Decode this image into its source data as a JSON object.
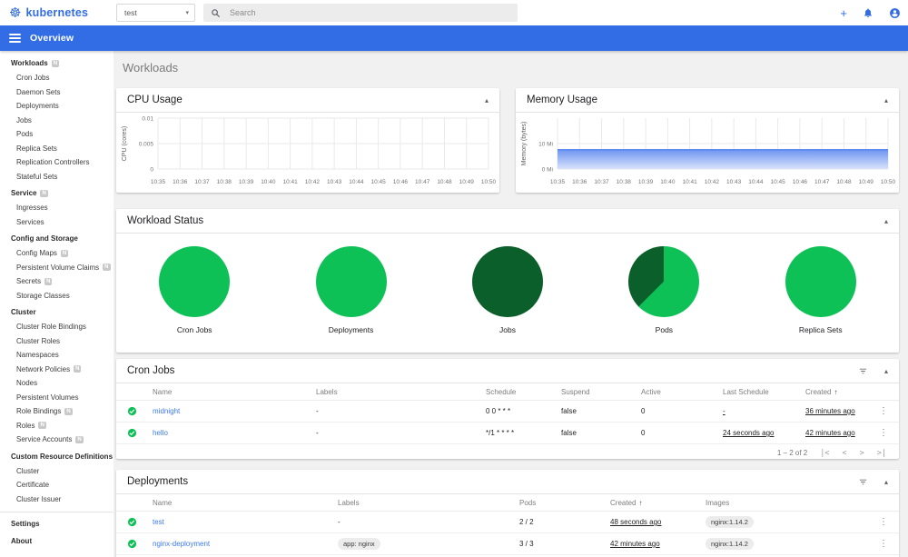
{
  "colors": {
    "brand_blue": "#326de6",
    "link_blue": "#3e7bf0",
    "success_green": "#0dc156",
    "succeeded_dark_green": "#0b5f2a",
    "memory_fill_top": "#6e95f1",
    "memory_fill_bottom": "#d9e2fb",
    "grid_line": "#e9e9e9",
    "page_bg": "#f1f1f1"
  },
  "topbar": {
    "logo_text": "kubernetes",
    "namespace_value": "test",
    "search_placeholder": "Search"
  },
  "navbar": {
    "title": "Overview"
  },
  "page": {
    "title": "Workloads"
  },
  "sidebar": {
    "sections": [
      {
        "label": "Workloads",
        "badge": true,
        "items": [
          {
            "label": "Cron Jobs",
            "badge": false
          },
          {
            "label": "Daemon Sets",
            "badge": false
          },
          {
            "label": "Deployments",
            "badge": false
          },
          {
            "label": "Jobs",
            "badge": false
          },
          {
            "label": "Pods",
            "badge": false
          },
          {
            "label": "Replica Sets",
            "badge": false
          },
          {
            "label": "Replication Controllers",
            "badge": false
          },
          {
            "label": "Stateful Sets",
            "badge": false
          }
        ]
      },
      {
        "label": "Service",
        "badge": true,
        "items": [
          {
            "label": "Ingresses",
            "badge": false
          },
          {
            "label": "Services",
            "badge": false
          }
        ]
      },
      {
        "label": "Config and Storage",
        "badge": false,
        "items": [
          {
            "label": "Config Maps",
            "badge": true
          },
          {
            "label": "Persistent Volume Claims",
            "badge": true
          },
          {
            "label": "Secrets",
            "badge": true
          },
          {
            "label": "Storage Classes",
            "badge": false
          }
        ]
      },
      {
        "label": "Cluster",
        "badge": false,
        "items": [
          {
            "label": "Cluster Role Bindings",
            "badge": false
          },
          {
            "label": "Cluster Roles",
            "badge": false
          },
          {
            "label": "Namespaces",
            "badge": false
          },
          {
            "label": "Network Policies",
            "badge": true
          },
          {
            "label": "Nodes",
            "badge": false
          },
          {
            "label": "Persistent Volumes",
            "badge": false
          },
          {
            "label": "Role Bindings",
            "badge": true
          },
          {
            "label": "Roles",
            "badge": true
          },
          {
            "label": "Service Accounts",
            "badge": true
          }
        ]
      },
      {
        "label": "Custom Resource Definitions",
        "badge": false,
        "items": [
          {
            "label": "Cluster",
            "badge": false
          },
          {
            "label": "Certificate",
            "badge": false
          },
          {
            "label": "Cluster Issuer",
            "badge": false
          }
        ]
      }
    ],
    "footer_items": [
      {
        "label": "Settings"
      },
      {
        "label": "About"
      }
    ]
  },
  "chart_data": [
    {
      "id": "cpu",
      "type": "line",
      "title": "CPU Usage",
      "xlabel": "",
      "ylabel": "CPU (cores)",
      "yticks": [
        "0",
        "0.005",
        "0.01"
      ],
      "ylim": [
        0,
        0.01
      ],
      "x": [
        "10:35",
        "10:36",
        "10:37",
        "10:38",
        "10:39",
        "10:40",
        "10:41",
        "10:42",
        "10:43",
        "10:44",
        "10:45",
        "10:46",
        "10:47",
        "10:48",
        "10:49",
        "10:50"
      ],
      "series": [],
      "grid": true,
      "legend": false
    },
    {
      "id": "memory",
      "type": "area",
      "title": "Memory Usage",
      "xlabel": "",
      "ylabel": "Memory (bytes)",
      "yticks": [
        "0 Mi",
        "10 Mi"
      ],
      "ylim_mi": [
        0,
        20
      ],
      "x": [
        "10:35",
        "10:36",
        "10:37",
        "10:38",
        "10:39",
        "10:40",
        "10:41",
        "10:42",
        "10:43",
        "10:44",
        "10:45",
        "10:46",
        "10:47",
        "10:48",
        "10:49",
        "10:50"
      ],
      "series": [
        {
          "name": "Memory usage (Mi)",
          "values": [
            7.6,
            7.6,
            7.6,
            7.6,
            7.6,
            7.6,
            7.6,
            7.6,
            7.6,
            7.6,
            7.6,
            7.6,
            7.6,
            7.6,
            7.6,
            7.6
          ]
        }
      ],
      "grid": true,
      "legend": false
    },
    {
      "id": "workload-status",
      "type": "pie",
      "title": "Workload Status",
      "pies": [
        {
          "label": "Cron Jobs",
          "slices": [
            {
              "name": "ready",
              "fraction": 1,
              "color": "#0dc156"
            }
          ]
        },
        {
          "label": "Deployments",
          "slices": [
            {
              "name": "ready",
              "fraction": 1,
              "color": "#0dc156"
            }
          ]
        },
        {
          "label": "Jobs",
          "slices": [
            {
              "name": "succeeded",
              "fraction": 1,
              "color": "#0b5f2a"
            }
          ]
        },
        {
          "label": "Pods",
          "slices": [
            {
              "name": "running",
              "fraction": 0.625,
              "color": "#0dc156"
            },
            {
              "name": "succeeded",
              "fraction": 0.375,
              "color": "#0b5f2a"
            }
          ]
        },
        {
          "label": "Replica Sets",
          "slices": [
            {
              "name": "ready",
              "fraction": 1,
              "color": "#0dc156"
            }
          ]
        }
      ]
    }
  ],
  "panels": {
    "cpu": {
      "title": "CPU Usage"
    },
    "memory": {
      "title": "Memory Usage"
    },
    "workload_status": {
      "title": "Workload Status"
    },
    "cron_jobs": {
      "title": "Cron Jobs",
      "columns": [
        "Name",
        "Labels",
        "Schedule",
        "Suspend",
        "Active",
        "Last Schedule",
        "Created"
      ],
      "sorted_column": "Created",
      "rows": [
        {
          "name": "midnight",
          "labels": "-",
          "schedule": "0 0 * * *",
          "suspend": "false",
          "active": "0",
          "last_schedule": "-",
          "created": "36 minutes ago"
        },
        {
          "name": "hello",
          "labels": "-",
          "schedule": "*/1 * * * *",
          "suspend": "false",
          "active": "0",
          "last_schedule": "24 seconds ago",
          "created": "42 minutes ago"
        }
      ],
      "pagination": {
        "range": "1 – 2 of 2"
      }
    },
    "deployments": {
      "title": "Deployments",
      "columns": [
        "Name",
        "Labels",
        "Pods",
        "Created",
        "Images"
      ],
      "sorted_column": "Created",
      "rows": [
        {
          "name": "test",
          "labels": "-",
          "pods": "2 / 2",
          "created": "48 seconds ago",
          "images": "nginx:1.14.2"
        },
        {
          "name": "nginx-deployment",
          "labels": "app: nginx",
          "pods": "3 / 3",
          "created": "42 minutes ago",
          "images": "nginx:1.14.2"
        }
      ]
    }
  }
}
